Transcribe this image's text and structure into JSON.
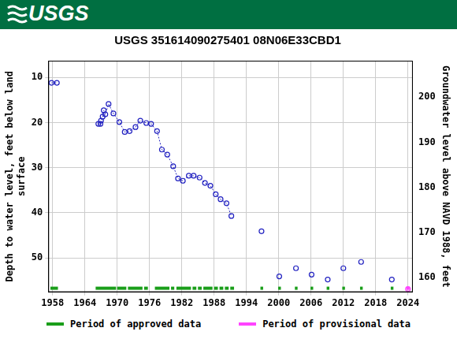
{
  "chart_data": {
    "type": "scatter",
    "header": "USGS",
    "title": "USGS 351614090275401 08N06E33CBD1",
    "y_label": [
      "Depth to water level, feet below land",
      "surface"
    ],
    "y2_label": "Groundwater level above NAVD 1988, feet",
    "xlim": [
      1957.2,
      2024.9
    ],
    "xticks": [
      1958,
      1964,
      1970,
      1976,
      1982,
      1988,
      1994,
      2000,
      2006,
      2012,
      2018,
      2024
    ],
    "ylim": [
      57.6,
      6.3
    ],
    "yticks": [
      10,
      20,
      30,
      40,
      50
    ],
    "y2lim": [
      156.8,
      208.1
    ],
    "y2ticks": [
      160,
      170,
      180,
      190,
      200
    ],
    "grid": true,
    "legend": "bottom",
    "series": [
      {
        "x": [
          1957.8,
          1958.8
        ],
        "values": [
          11.2,
          11.2
        ],
        "color": "#2020c0",
        "marker": "circle",
        "line_style": "dotted"
      },
      {
        "x": [
          1966.5,
          1966.9,
          1967.0,
          1967.3,
          1967.5,
          1967.8,
          1968.4,
          1969.3,
          1970.4,
          1971.4,
          1972.3,
          1973.4,
          1974.3,
          1975.4,
          1976.3,
          1977.4,
          1978.3,
          1979.3,
          1980.4,
          1981.3,
          1982.2,
          1983.3,
          1984.2,
          1985.3,
          1986.3,
          1987.3,
          1988.3,
          1989.2,
          1990.3,
          1991.2
        ],
        "values": [
          20.3,
          20.3,
          19.6,
          18.7,
          17.3,
          18.2,
          15.9,
          18.0,
          19.9,
          22.1,
          21.9,
          21.0,
          19.6,
          20.1,
          20.3,
          21.9,
          26.0,
          27.1,
          29.7,
          32.4,
          32.9,
          31.8,
          31.8,
          32.2,
          33.4,
          34.0,
          35.9,
          37.0,
          37.9,
          40.7
        ],
        "color": "#2020c0",
        "marker": "circle",
        "line_style": "dotted"
      },
      {
        "x": [
          1996.8,
          2000.1,
          2003.2,
          2006.1,
          2009.1,
          2012.0,
          2015.3,
          2021.0
        ],
        "values": [
          44.1,
          54.1,
          52.3,
          53.7,
          54.8,
          52.3,
          50.9,
          54.8
        ],
        "color": "#2020c0",
        "marker": "circle",
        "line_style": "none"
      },
      {
        "x": [
          2024.0
        ],
        "values": [
          56.9
        ],
        "color": "#ff44ff",
        "marker": "circle",
        "line_style": "none"
      }
    ],
    "periods": [
      {
        "name": "Period of approved data",
        "color": "#1a9e1a",
        "ranges": [
          [
            1957.6,
            1959.0
          ],
          [
            1966.0,
            1969.8
          ],
          [
            1970.0,
            1971.7
          ],
          [
            1972.0,
            1974.7
          ],
          [
            1975.0,
            1975.7
          ],
          [
            1977.0,
            1979.7
          ],
          [
            1980.0,
            1980.6
          ],
          [
            1981.0,
            1983.7
          ],
          [
            1984.0,
            1984.7
          ],
          [
            1985.0,
            1985.7
          ],
          [
            1986.0,
            1987.7
          ],
          [
            1988.0,
            1988.7
          ],
          [
            1989.0,
            1989.7
          ],
          [
            1990.0,
            1990.7
          ],
          [
            1991.0,
            1991.7
          ],
          [
            1996.6,
            1997.1
          ],
          [
            1999.9,
            2000.4
          ],
          [
            2003.0,
            2003.5
          ],
          [
            2005.9,
            2006.4
          ],
          [
            2008.9,
            2009.4
          ],
          [
            2011.8,
            2012.3
          ],
          [
            2015.1,
            2015.6
          ],
          [
            2020.8,
            2021.3
          ]
        ]
      },
      {
        "name": "Period of provisional data",
        "color": "#ff44ff",
        "ranges": [
          [
            2023.7,
            2024.3
          ]
        ]
      }
    ]
  }
}
